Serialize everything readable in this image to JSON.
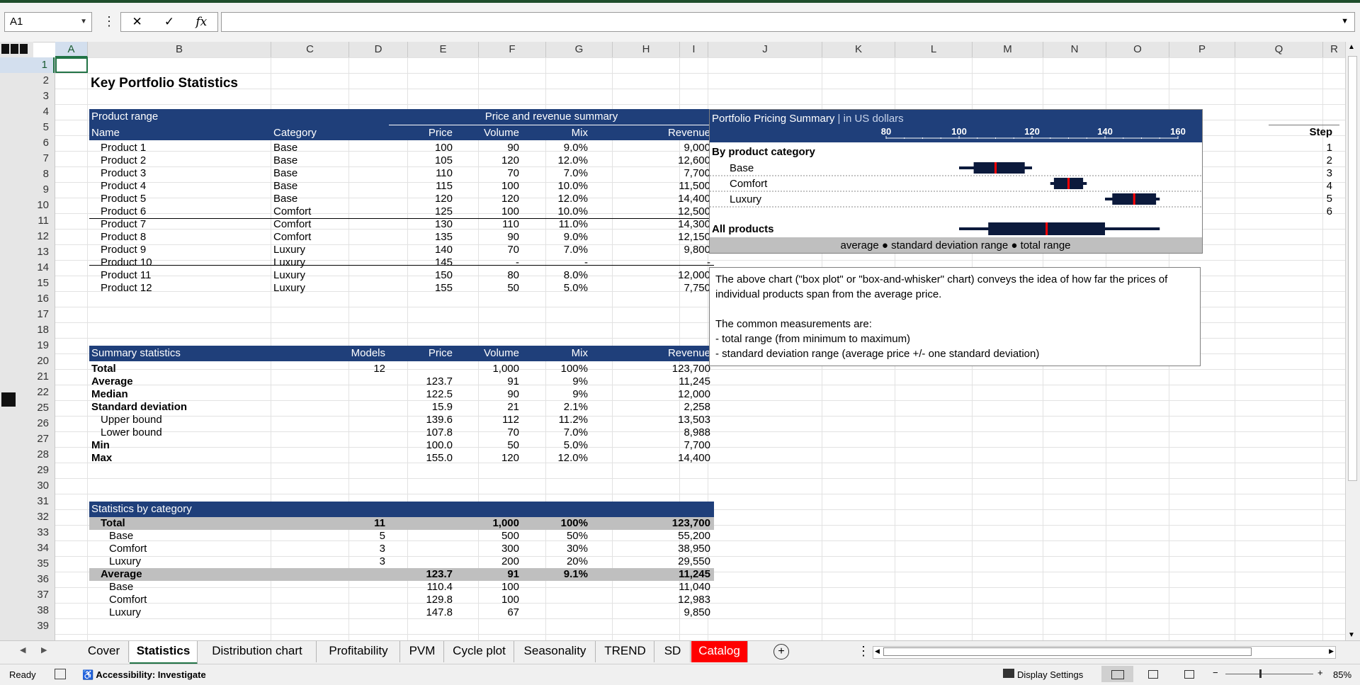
{
  "formula_bar": {
    "name_box": "A1",
    "formula": ""
  },
  "columns": [
    "A",
    "B",
    "C",
    "D",
    "E",
    "F",
    "G",
    "H",
    "I",
    "J",
    "K",
    "L",
    "M",
    "N",
    "O",
    "P",
    "Q",
    "R"
  ],
  "rows": [
    "1",
    "2",
    "3",
    "4",
    "5",
    "6",
    "7",
    "8",
    "9",
    "10",
    "11",
    "12",
    "13",
    "14",
    "15",
    "16",
    "17",
    "18",
    "19",
    "20",
    "21",
    "22",
    "25",
    "26",
    "27",
    "28",
    "29",
    "30",
    "31",
    "32",
    "33",
    "34",
    "35",
    "36",
    "37",
    "38",
    "39"
  ],
  "title": "Key Portfolio Statistics",
  "products": {
    "group_header": "Product range",
    "summary_header": "Price and revenue summary",
    "headers": {
      "name": "Name",
      "category": "Category",
      "price": "Price",
      "volume": "Volume",
      "mix": "Mix",
      "revenue": "Revenue"
    },
    "rows": [
      {
        "name": "Product 1",
        "category": "Base",
        "price": "100",
        "volume": "90",
        "mix": "9.0%",
        "revenue": "9,000"
      },
      {
        "name": "Product 2",
        "category": "Base",
        "price": "105",
        "volume": "120",
        "mix": "12.0%",
        "revenue": "12,600"
      },
      {
        "name": "Product 3",
        "category": "Base",
        "price": "110",
        "volume": "70",
        "mix": "7.0%",
        "revenue": "7,700"
      },
      {
        "name": "Product 4",
        "category": "Base",
        "price": "115",
        "volume": "100",
        "mix": "10.0%",
        "revenue": "11,500"
      },
      {
        "name": "Product 5",
        "category": "Base",
        "price": "120",
        "volume": "120",
        "mix": "12.0%",
        "revenue": "14,400"
      },
      {
        "name": "Product 6",
        "category": "Comfort",
        "price": "125",
        "volume": "100",
        "mix": "10.0%",
        "revenue": "12,500"
      },
      {
        "name": "Product 7",
        "category": "Comfort",
        "price": "130",
        "volume": "110",
        "mix": "11.0%",
        "revenue": "14,300"
      },
      {
        "name": "Product 8",
        "category": "Comfort",
        "price": "135",
        "volume": "90",
        "mix": "9.0%",
        "revenue": "12,150"
      },
      {
        "name": "Product 9",
        "category": "Luxury",
        "price": "140",
        "volume": "70",
        "mix": "7.0%",
        "revenue": "9,800"
      },
      {
        "name": "Product 10",
        "category": "Luxury",
        "price": "145",
        "volume": "-",
        "mix": "-",
        "revenue": "-"
      },
      {
        "name": "Product 11",
        "category": "Luxury",
        "price": "150",
        "volume": "80",
        "mix": "8.0%",
        "revenue": "12,000"
      },
      {
        "name": "Product 12",
        "category": "Luxury",
        "price": "155",
        "volume": "50",
        "mix": "5.0%",
        "revenue": "7,750"
      }
    ]
  },
  "summary": {
    "headers": {
      "label": "Summary statistics",
      "models": "Models",
      "price": "Price",
      "volume": "Volume",
      "mix": "Mix",
      "revenue": "Revenue"
    },
    "rows": [
      {
        "label": "Total",
        "models": "12",
        "price": "",
        "volume": "1,000",
        "mix": "100%",
        "revenue": "123,700",
        "bold": true,
        "indent": false
      },
      {
        "label": "Average",
        "models": "",
        "price": "123.7",
        "volume": "91",
        "mix": "9%",
        "revenue": "11,245",
        "bold": true,
        "indent": false
      },
      {
        "label": "Median",
        "models": "",
        "price": "122.5",
        "volume": "90",
        "mix": "9%",
        "revenue": "12,000",
        "bold": true,
        "indent": false
      },
      {
        "label": "Standard deviation",
        "models": "",
        "price": "15.9",
        "volume": "21",
        "mix": "2.1%",
        "revenue": "2,258",
        "bold": true,
        "indent": false
      },
      {
        "label": "Upper bound",
        "models": "",
        "price": "139.6",
        "volume": "112",
        "mix": "11.2%",
        "revenue": "13,503",
        "bold": false,
        "indent": true
      },
      {
        "label": "Lower bound",
        "models": "",
        "price": "107.8",
        "volume": "70",
        "mix": "7.0%",
        "revenue": "8,988",
        "bold": false,
        "indent": true
      },
      {
        "label": "Min",
        "models": "",
        "price": "100.0",
        "volume": "50",
        "mix": "5.0%",
        "revenue": "7,700",
        "bold": true,
        "indent": false
      },
      {
        "label": "Max",
        "models": "",
        "price": "155.0",
        "volume": "120",
        "mix": "12.0%",
        "revenue": "14,400",
        "bold": true,
        "indent": false
      }
    ]
  },
  "by_category": {
    "header": "Statistics by category",
    "rows": [
      {
        "label": "Total",
        "models": "11",
        "price": "",
        "volume": "1,000",
        "mix": "100%",
        "revenue": "123,700",
        "kind": "group"
      },
      {
        "label": "Base",
        "models": "5",
        "price": "",
        "volume": "500",
        "mix": "50%",
        "revenue": "55,200",
        "kind": "item"
      },
      {
        "label": "Comfort",
        "models": "3",
        "price": "",
        "volume": "300",
        "mix": "30%",
        "revenue": "38,950",
        "kind": "item"
      },
      {
        "label": "Luxury",
        "models": "3",
        "price": "",
        "volume": "200",
        "mix": "20%",
        "revenue": "29,550",
        "kind": "item"
      },
      {
        "label": "Average",
        "models": "",
        "price": "123.7",
        "volume": "91",
        "mix": "9.1%",
        "revenue": "11,245",
        "kind": "group"
      },
      {
        "label": "Base",
        "models": "",
        "price": "110.4",
        "volume": "100",
        "mix": "",
        "revenue": "11,040",
        "kind": "item"
      },
      {
        "label": "Comfort",
        "models": "",
        "price": "129.8",
        "volume": "100",
        "mix": "",
        "revenue": "12,983",
        "kind": "item"
      },
      {
        "label": "Luxury",
        "models": "",
        "price": "147.8",
        "volume": "67",
        "mix": "",
        "revenue": "9,850",
        "kind": "item"
      }
    ]
  },
  "steps": {
    "header": "Step",
    "values": [
      "1",
      "2",
      "3",
      "4",
      "5",
      "6"
    ]
  },
  "chart_data": {
    "type": "box",
    "title": "Portfolio Pricing Summary",
    "subtitle": "in US dollars",
    "section_label": "By product category",
    "total_label": "All products",
    "legend": "average ● standard deviation range ● total range",
    "x_ticks": [
      80,
      100,
      120,
      140,
      160
    ],
    "xlim": [
      80,
      160
    ],
    "series": [
      {
        "name": "Base",
        "min": 100,
        "lower": 104,
        "avg": 110,
        "upper": 118,
        "max": 120
      },
      {
        "name": "Comfort",
        "min": 125,
        "lower": 126,
        "avg": 130,
        "upper": 134,
        "max": 135
      },
      {
        "name": "Luxury",
        "min": 140,
        "lower": 142,
        "avg": 148,
        "upper": 154,
        "max": 155
      },
      {
        "name": "All products",
        "min": 100,
        "lower": 108,
        "avg": 124,
        "upper": 140,
        "max": 155
      }
    ]
  },
  "note": {
    "lines": [
      "The above chart (\"box plot\" or \"box-and-whisker\" chart) conveys the idea of how far the prices of",
      "individual products span from the average price.",
      "",
      "The common measurements are:",
      "- total range (from minimum to maximum)",
      "- standard deviation range (average price +/- one standard deviation)"
    ]
  },
  "sheet_tabs": [
    "Cover",
    "Statistics",
    "Distribution chart",
    "Profitability",
    "PVM",
    "Cycle plot",
    "Seasonality",
    "TREND",
    "SD",
    "Catalog"
  ],
  "active_tab": "Statistics",
  "highlight_tab": "Catalog",
  "status": {
    "ready": "Ready",
    "accessibility": "Accessibility: Investigate",
    "display_settings": "Display Settings",
    "zoom": "85%"
  }
}
